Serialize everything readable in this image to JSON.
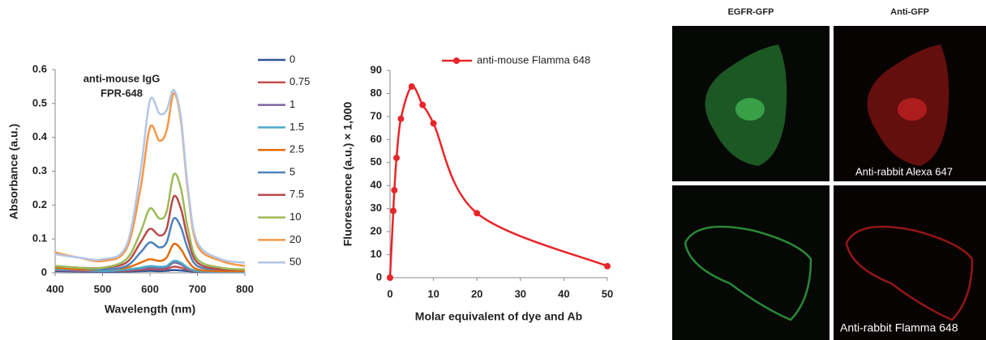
{
  "chart_data": [
    {
      "type": "line",
      "smooth": true,
      "markers": false,
      "legend": "right",
      "annotation": [
        "anti-mouse IgG",
        "FPR-648"
      ],
      "x_label": "Wavelength (nm)",
      "y_label": "Absorbance (a.u.)",
      "x": [
        400,
        450,
        500,
        550,
        580,
        600,
        620,
        635,
        650,
        665,
        680,
        700,
        750,
        800
      ],
      "xlim": [
        400,
        800
      ],
      "xticks": [
        400,
        500,
        600,
        700,
        800
      ],
      "ylim": [
        0,
        0.6
      ],
      "yticks": [
        0,
        0.1,
        0.2,
        0.3,
        0.4,
        0.5,
        0.6
      ],
      "series": [
        {
          "name": "0",
          "color": "#2f5597",
          "values": [
            0.005,
            0.004,
            0.003,
            0.004,
            0.005,
            0.006,
            0.005,
            0.006,
            0.008,
            0.007,
            0.005,
            0.003,
            0.002,
            0.002
          ]
        },
        {
          "name": "0.75",
          "color": "#c0504d",
          "values": [
            0.008,
            0.006,
            0.005,
            0.006,
            0.009,
            0.011,
            0.01,
            0.011,
            0.018,
            0.015,
            0.009,
            0.004,
            0.002,
            0.002
          ]
        },
        {
          "name": "1",
          "color": "#8064a2",
          "values": [
            0.01,
            0.005,
            0.005,
            0.008,
            0.012,
            0.015,
            0.013,
            0.016,
            0.03,
            0.025,
            0.012,
            0.005,
            0.002,
            0.002
          ]
        },
        {
          "name": "1.5",
          "color": "#4bacc6",
          "values": [
            0.01,
            0.01,
            0.005,
            0.01,
            0.015,
            0.02,
            0.018,
            0.02,
            0.035,
            0.03,
            0.015,
            0.005,
            0.003,
            0.003
          ]
        },
        {
          "name": "2.5",
          "color": "#e46c0a",
          "values": [
            0.015,
            0.01,
            0.01,
            0.015,
            0.03,
            0.04,
            0.035,
            0.045,
            0.085,
            0.07,
            0.035,
            0.01,
            0.005,
            0.005
          ]
        },
        {
          "name": "5",
          "color": "#4f81bd",
          "values": [
            0.02,
            0.015,
            0.01,
            0.02,
            0.06,
            0.09,
            0.075,
            0.09,
            0.16,
            0.135,
            0.07,
            0.02,
            0.01,
            0.01
          ]
        },
        {
          "name": "7.5",
          "color": "#b94a48",
          "values": [
            0.02,
            0.015,
            0.015,
            0.03,
            0.09,
            0.13,
            0.11,
            0.13,
            0.225,
            0.19,
            0.1,
            0.03,
            0.01,
            0.01
          ]
        },
        {
          "name": "10",
          "color": "#9bbb59",
          "values": [
            0.02,
            0.015,
            0.015,
            0.04,
            0.12,
            0.19,
            0.16,
            0.18,
            0.29,
            0.25,
            0.13,
            0.04,
            0.015,
            0.01
          ]
        },
        {
          "name": "20",
          "color": "#f79646",
          "values": [
            0.06,
            0.045,
            0.035,
            0.07,
            0.25,
            0.43,
            0.39,
            0.42,
            0.53,
            0.45,
            0.24,
            0.08,
            0.035,
            0.02
          ]
        },
        {
          "name": "50",
          "color": "#b3c6e7",
          "values": [
            0.055,
            0.045,
            0.04,
            0.08,
            0.3,
            0.51,
            0.47,
            0.48,
            0.54,
            0.46,
            0.25,
            0.09,
            0.04,
            0.03
          ]
        }
      ]
    },
    {
      "type": "line",
      "smooth": true,
      "markers": true,
      "legend": "top",
      "x_label": "Molar equivalent of dye and Ab",
      "y_label": "Fluorescence (a.u.) × 1,000",
      "x": [
        0,
        0.75,
        1,
        1.5,
        2.5,
        5,
        7.5,
        10,
        20,
        50
      ],
      "xlim": [
        0,
        50
      ],
      "xticks": [
        0,
        10,
        20,
        30,
        40,
        50
      ],
      "ylim": [
        0,
        90
      ],
      "yticks": [
        0,
        10,
        20,
        30,
        40,
        50,
        60,
        70,
        80,
        90
      ],
      "series": [
        {
          "name": "anti-mouse Flamma 648",
          "color": "#e8262a",
          "values": [
            0,
            29,
            38,
            52,
            69,
            83,
            75,
            67,
            28,
            5
          ]
        }
      ]
    }
  ],
  "image_panel": {
    "column_titles": [
      "EGFR-GFP",
      "Anti-GFP"
    ],
    "row_labels": [
      "Anti-rabbit Alexa 647",
      "Anti-rabbit Flamma 648"
    ]
  }
}
